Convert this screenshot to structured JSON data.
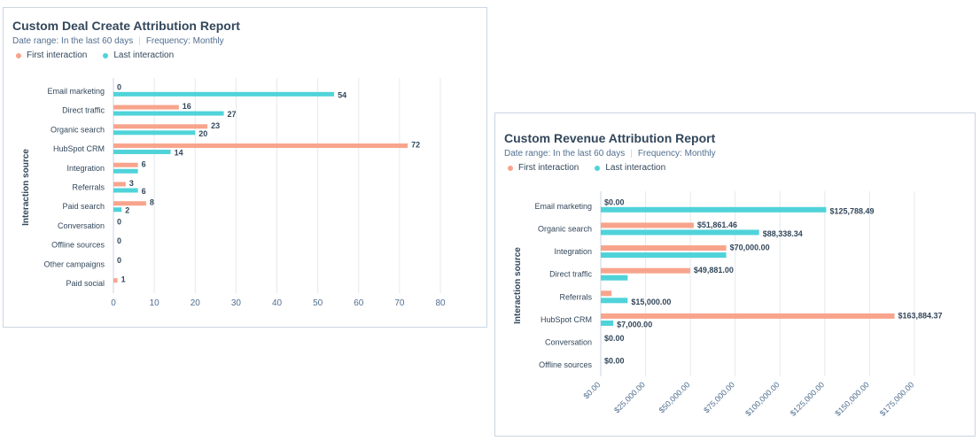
{
  "charts": [
    {
      "title": "Custom Deal Create Attribution Report",
      "date_range": "Date range: In the last 60 days",
      "frequency": "Frequency: Monthly",
      "legend": {
        "first": "First interaction",
        "last": "Last interaction"
      }
    },
    {
      "title": "Custom Revenue Attribution Report",
      "date_range": "Date range: In the last 60 days",
      "frequency": "Frequency: Monthly",
      "legend": {
        "first": "First interaction",
        "last": "Last interaction"
      }
    }
  ],
  "colors": {
    "first": "#f8a48c",
    "last": "#4fd3d9",
    "grid": "#e5e9ee",
    "axis": "#cbd6e2",
    "text": "#33475b"
  },
  "chart_data": [
    {
      "type": "bar",
      "orientation": "horizontal",
      "title": "Custom Deal Create Attribution Report",
      "ylabel": "Interaction source",
      "xlabel": "",
      "xlim": [
        0,
        80
      ],
      "xticks": [
        0,
        10,
        20,
        30,
        40,
        50,
        60,
        70,
        80
      ],
      "xtick_labels": [
        "0",
        "10",
        "20",
        "30",
        "40",
        "50",
        "60",
        "70",
        "80"
      ],
      "categories": [
        "Email marketing",
        "Direct traffic",
        "Organic search",
        "HubSpot CRM",
        "Integration",
        "Referrals",
        "Paid search",
        "Conversation",
        "Offline sources",
        "Other campaigns",
        "Paid social"
      ],
      "series": [
        {
          "name": "First interaction",
          "values": [
            0,
            16,
            23,
            72,
            6,
            3,
            8,
            0,
            0,
            0,
            1
          ]
        },
        {
          "name": "Last interaction",
          "values": [
            54,
            27,
            20,
            14,
            6,
            6,
            2,
            0,
            0,
            0,
            0
          ]
        }
      ],
      "labels": [
        [
          "0",
          "54"
        ],
        [
          "16",
          "27"
        ],
        [
          "23",
          "20"
        ],
        [
          "72",
          "14"
        ],
        [
          "6",
          ""
        ],
        [
          "3",
          "6"
        ],
        [
          "8",
          "2"
        ],
        [
          "0",
          ""
        ],
        [
          "0",
          ""
        ],
        [
          "0",
          ""
        ],
        [
          "1",
          ""
        ]
      ],
      "grid": true,
      "legend": "top-left"
    },
    {
      "type": "bar",
      "orientation": "horizontal",
      "title": "Custom Revenue Attribution Report",
      "ylabel": "Interaction source",
      "xlabel": "",
      "xlim": [
        0,
        175000
      ],
      "xticks": [
        0,
        25000,
        50000,
        75000,
        100000,
        125000,
        150000,
        175000
      ],
      "xtick_labels": [
        "$0.00",
        "$25,000.00",
        "$50,000.00",
        "$75,000.00",
        "$100,000.00",
        "$125,000.00",
        "$150,000.00",
        "$175,000.00"
      ],
      "categories": [
        "Email marketing",
        "Organic search",
        "Integration",
        "Direct traffic",
        "Referrals",
        "HubSpot CRM",
        "Conversation",
        "Offline sources"
      ],
      "series": [
        {
          "name": "First interaction",
          "values": [
            0,
            51861.46,
            70000,
            49881,
            6000,
            163884.37,
            0,
            0
          ]
        },
        {
          "name": "Last interaction",
          "values": [
            125788.49,
            88338.34,
            70000,
            15000,
            15000,
            7000,
            0,
            0
          ]
        }
      ],
      "labels": [
        [
          "$0.00",
          "$125,788.49"
        ],
        [
          "$51,861.46",
          "$88,338.34"
        ],
        [
          "$70,000.00",
          ""
        ],
        [
          "$49,881.00",
          ""
        ],
        [
          "",
          "$15,000.00"
        ],
        [
          "$163,884.37",
          "$7,000.00"
        ],
        [
          "$0.00",
          ""
        ],
        [
          "$0.00",
          ""
        ]
      ],
      "grid": true,
      "legend": "top-left"
    }
  ]
}
